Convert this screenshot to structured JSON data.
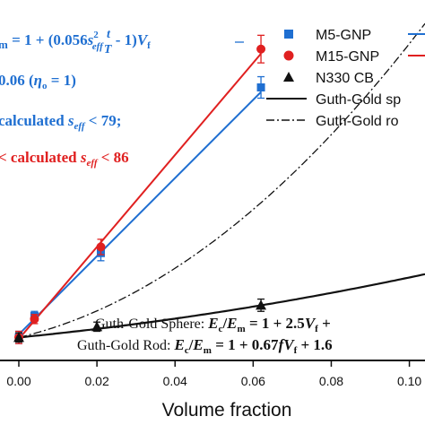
{
  "chart_data": {
    "type": "scatter",
    "xlabel": "Volume fraction",
    "ylabel": "",
    "x_ticks": [
      "0.00",
      "0.02",
      "0.04",
      "0.06",
      "0.08",
      "0.10"
    ],
    "xlim": [
      0.0,
      0.104
    ],
    "ylim": [
      0.85,
      3.2
    ],
    "series": [
      {
        "name": "M5-GNP",
        "color": "#1f6fd1",
        "marker": "square",
        "points": [
          {
            "x": 0.0,
            "y": 1.0,
            "err": 0.04
          },
          {
            "x": 0.004,
            "y": 1.14,
            "err": 0.03
          },
          {
            "x": 0.021,
            "y": 1.55,
            "err": 0.05
          },
          {
            "x": 0.062,
            "y": 2.63,
            "err": 0.07
          }
        ],
        "fit": [
          [
            0.0,
            1.02
          ],
          [
            0.062,
            2.6
          ]
        ]
      },
      {
        "name": "M15-GNP",
        "color": "#e02020",
        "marker": "circle",
        "points": [
          {
            "x": 0.0,
            "y": 1.0,
            "err": 0.04
          },
          {
            "x": 0.004,
            "y": 1.12,
            "err": 0.03
          },
          {
            "x": 0.021,
            "y": 1.59,
            "err": 0.05
          },
          {
            "x": 0.062,
            "y": 2.88,
            "err": 0.09
          }
        ],
        "fit": [
          [
            0.0,
            0.99
          ],
          [
            0.062,
            2.85
          ]
        ]
      },
      {
        "name": "N330 CB",
        "color": "#111111",
        "marker": "triangle",
        "points": [
          {
            "x": 0.0,
            "y": 1.0,
            "err": 0.03
          },
          {
            "x": 0.02,
            "y": 1.07,
            "err": 0.03
          },
          {
            "x": 0.062,
            "y": 1.21,
            "err": 0.04
          }
        ]
      }
    ],
    "curves": [
      {
        "name": "Guth-Gold sphere",
        "style": "solid",
        "model": "sphere"
      },
      {
        "name": "Guth-Gold rod",
        "style": "dashdot",
        "model": "rod"
      }
    ],
    "legend_placement": "top-right",
    "grid": false
  },
  "legend": [
    {
      "key": "m5",
      "label": "M5-GNP"
    },
    {
      "key": "m15",
      "label": "M15-GNP"
    },
    {
      "key": "cb",
      "label": "N330 CB"
    },
    {
      "key": "sphere",
      "label": "Guth-Gold sp"
    },
    {
      "key": "rod",
      "label": "Guth-Gold ro"
    }
  ],
  "annotations": {
    "eq_top_left": "m",
    "eq_top_mid": " = 1 + (0.056",
    "eq_top_s": "s",
    "eq_top_sup": "2",
    "eq_top_sub": "eff",
    "eq_top_frac_num": "t",
    "eq_top_frac_den": "T",
    "eq_top_tail": " - 1)",
    "eq_top_V": "V",
    "eq_top_Vsub": "f",
    "eta_value": "0.06",
    "eta_paren_open": "(",
    "eta_symbol": "η",
    "eta_sub": "o",
    "eta_rest": " = 1)",
    "blue_calc": "calculated ",
    "blue_s": "s",
    "blue_sub": "eff",
    "blue_lt": " < 79;",
    "red_prefix": "< calculated ",
    "red_s": "s",
    "red_sub": "eff",
    "red_lt": " < 86",
    "sphere_label": "Guth-Gold Sphere:",
    "sphere_lhs": "E",
    "sphere_lhs_sub": "c",
    "sphere_slash": "/",
    "sphere_E2": "E",
    "sphere_E2_sub": "m",
    "sphere_rhs": " = 1 + 2.5",
    "sphere_V": "V",
    "sphere_Vsub": "f",
    "sphere_tail": " +",
    "rod_label": "Guth-Gold Rod:",
    "rod_lhs": "E",
    "rod_lhs_sub": "c",
    "rod_slash": "/",
    "rod_E2": "E",
    "rod_E2_sub": "m",
    "rod_rhs": " = 1 + 0.67",
    "rod_f": "f",
    "rod_V": "V",
    "rod_Vsub": "f",
    "rod_tail": " + 1.6"
  }
}
